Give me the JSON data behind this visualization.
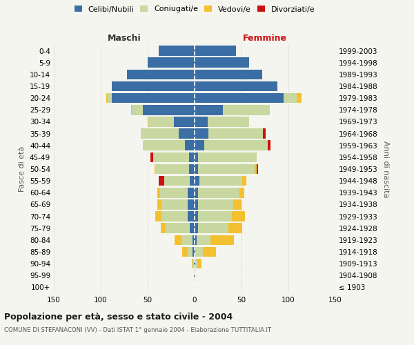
{
  "age_groups": [
    "100+",
    "95-99",
    "90-94",
    "85-89",
    "80-84",
    "75-79",
    "70-74",
    "65-69",
    "60-64",
    "55-59",
    "50-54",
    "45-49",
    "40-44",
    "35-39",
    "30-34",
    "25-29",
    "20-24",
    "15-19",
    "10-14",
    "5-9",
    "0-4"
  ],
  "birth_years": [
    "≤ 1903",
    "1904-1908",
    "1909-1913",
    "1914-1918",
    "1919-1923",
    "1924-1928",
    "1929-1933",
    "1934-1938",
    "1939-1943",
    "1944-1948",
    "1949-1953",
    "1954-1958",
    "1959-1963",
    "1964-1968",
    "1969-1973",
    "1974-1978",
    "1979-1983",
    "1984-1988",
    "1989-1993",
    "1994-1998",
    "1999-2003"
  ],
  "colors": {
    "celibi": "#3a6ea5",
    "coniugati": "#c8d8a0",
    "vedovi": "#f5c030",
    "divorziati": "#cc1111"
  },
  "male": {
    "celibi": [
      0,
      1,
      1,
      2,
      2,
      5,
      7,
      7,
      7,
      5,
      6,
      6,
      10,
      17,
      22,
      55,
      88,
      88,
      72,
      50,
      38
    ],
    "coniugati": [
      0,
      0,
      1,
      5,
      12,
      26,
      28,
      28,
      30,
      27,
      36,
      38,
      45,
      40,
      27,
      12,
      5,
      0,
      0,
      0,
      0
    ],
    "vedovi": [
      0,
      0,
      1,
      6,
      7,
      5,
      7,
      5,
      3,
      0,
      1,
      0,
      0,
      0,
      1,
      1,
      1,
      0,
      0,
      0,
      0
    ],
    "divorziati": [
      0,
      0,
      0,
      0,
      0,
      0,
      0,
      0,
      0,
      6,
      0,
      3,
      0,
      0,
      0,
      0,
      0,
      0,
      0,
      0,
      0
    ]
  },
  "female": {
    "celibi": [
      0,
      0,
      1,
      1,
      2,
      4,
      4,
      4,
      4,
      5,
      4,
      4,
      10,
      15,
      14,
      30,
      95,
      88,
      72,
      58,
      44
    ],
    "coniugati": [
      0,
      0,
      2,
      8,
      15,
      32,
      36,
      37,
      44,
      46,
      60,
      62,
      68,
      58,
      44,
      50,
      14,
      0,
      0,
      0,
      0
    ],
    "vedovi": [
      0,
      1,
      4,
      14,
      25,
      15,
      14,
      9,
      5,
      4,
      2,
      0,
      0,
      0,
      0,
      0,
      5,
      0,
      0,
      0,
      0
    ],
    "divorziati": [
      0,
      0,
      0,
      0,
      0,
      0,
      0,
      0,
      0,
      0,
      2,
      0,
      3,
      3,
      0,
      0,
      0,
      0,
      0,
      0,
      0
    ]
  },
  "xlim": 150,
  "title": "Popolazione per età, sesso e stato civile - 2004",
  "subtitle": "COMUNE DI STEFANACONI (VV) - Dati ISTAT 1° gennaio 2004 - Elaborazione TUTTITALIA.IT",
  "ylabel_left": "Fasce di età",
  "ylabel_right": "Anni di nascita",
  "xlabel_left": "Maschi",
  "xlabel_right": "Femmine",
  "background_color": "#f5f5f0",
  "grid_color": "#cccccc"
}
